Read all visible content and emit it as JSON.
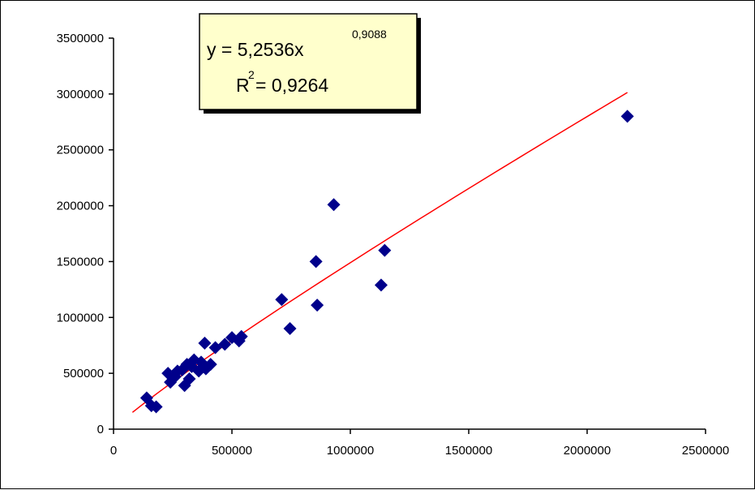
{
  "chart_data": {
    "type": "scatter",
    "title": "",
    "xlabel": "",
    "ylabel": "",
    "xlim": [
      0,
      2500000
    ],
    "ylim": [
      0,
      3500000
    ],
    "x_ticks": [
      0,
      500000,
      1000000,
      1500000,
      2000000,
      2500000
    ],
    "y_ticks": [
      0,
      500000,
      1000000,
      1500000,
      2000000,
      2500000,
      3000000,
      3500000
    ],
    "x_tick_labels": [
      "0",
      "500000",
      "1000000",
      "1500000",
      "2000000",
      "2500000"
    ],
    "y_tick_labels": [
      "0",
      "500000",
      "1000000",
      "1500000",
      "2000000",
      "2500000",
      "3000000",
      "3500000"
    ],
    "grid": false,
    "legend": "none",
    "points": [
      {
        "x": 140000,
        "y": 280000
      },
      {
        "x": 160000,
        "y": 210000
      },
      {
        "x": 180000,
        "y": 200000
      },
      {
        "x": 230000,
        "y": 500000
      },
      {
        "x": 240000,
        "y": 420000
      },
      {
        "x": 260000,
        "y": 470000
      },
      {
        "x": 270000,
        "y": 520000
      },
      {
        "x": 290000,
        "y": 530000
      },
      {
        "x": 300000,
        "y": 390000
      },
      {
        "x": 310000,
        "y": 580000
      },
      {
        "x": 320000,
        "y": 450000
      },
      {
        "x": 330000,
        "y": 560000
      },
      {
        "x": 340000,
        "y": 620000
      },
      {
        "x": 360000,
        "y": 520000
      },
      {
        "x": 370000,
        "y": 600000
      },
      {
        "x": 385000,
        "y": 770000
      },
      {
        "x": 390000,
        "y": 540000
      },
      {
        "x": 410000,
        "y": 580000
      },
      {
        "x": 430000,
        "y": 730000
      },
      {
        "x": 470000,
        "y": 760000
      },
      {
        "x": 500000,
        "y": 820000
      },
      {
        "x": 530000,
        "y": 790000
      },
      {
        "x": 540000,
        "y": 830000
      },
      {
        "x": 710000,
        "y": 1160000
      },
      {
        "x": 745000,
        "y": 900000
      },
      {
        "x": 855000,
        "y": 1500000
      },
      {
        "x": 860000,
        "y": 1110000
      },
      {
        "x": 930000,
        "y": 2010000
      },
      {
        "x": 1130000,
        "y": 1290000
      },
      {
        "x": 1145000,
        "y": 1600000
      },
      {
        "x": 2170000,
        "y": 2800000
      }
    ],
    "trendline": {
      "type": "power",
      "coefficient": 5.2536,
      "exponent": 0.9088,
      "x_range": [
        80000,
        2170000
      ],
      "equation_text": "y = 5,2536x",
      "exponent_text": "0,9088",
      "r2_prefix": "R",
      "r2_sup": "2",
      "r2_text": " = 0,9264"
    },
    "colors": {
      "marker": "#00008B",
      "trendline": "#FF0000",
      "label_box_fill": "#FFFFCC",
      "label_box_shadow": "#000000",
      "axis": "#000000"
    }
  }
}
